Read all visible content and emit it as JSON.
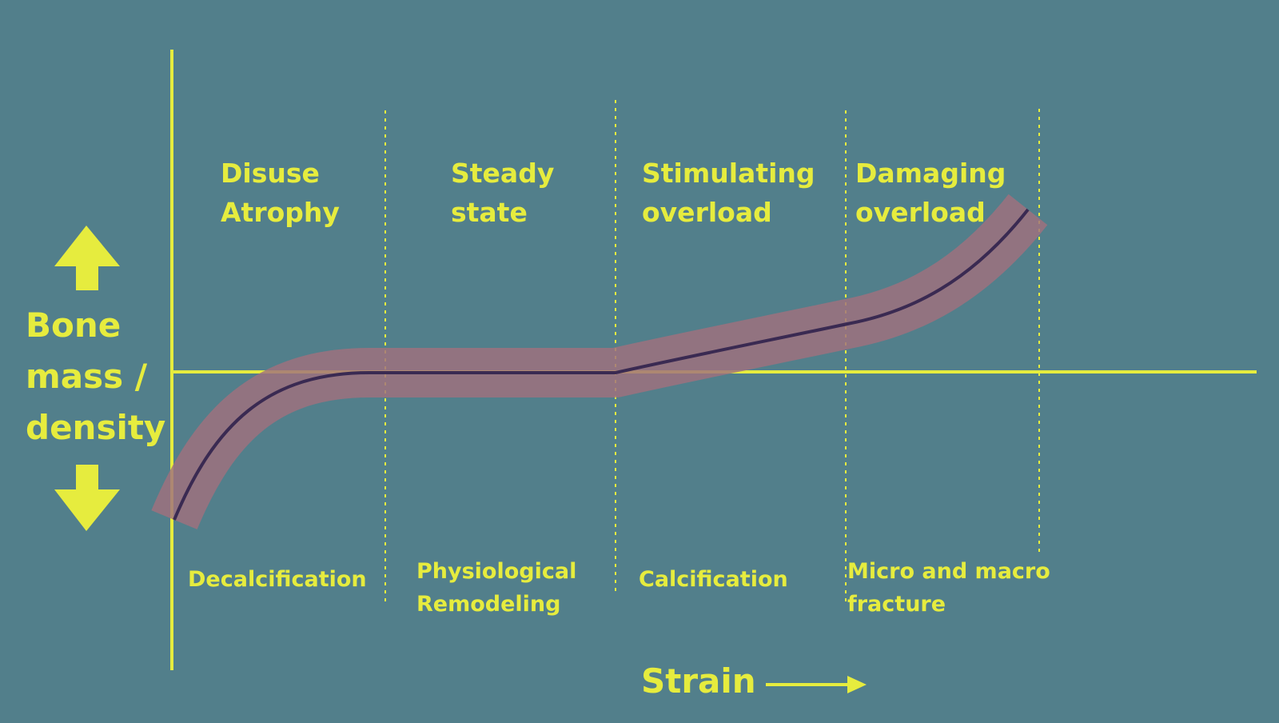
{
  "colors": {
    "background": "#527f8b",
    "accent": "#e6ec3e",
    "curve": "#3a2a52",
    "band": "#a0707e"
  },
  "y_axis": {
    "label_lines": [
      "Bone",
      "mass /",
      "density"
    ],
    "up_icon": "arrow-up-icon",
    "down_icon": "arrow-down-icon"
  },
  "x_axis": {
    "label": "Strain",
    "icon": "arrow-right-icon"
  },
  "zones": [
    {
      "title_lines": [
        "Disuse",
        "Atrophy"
      ],
      "effect_lines": [
        "Decalcification"
      ]
    },
    {
      "title_lines": [
        "Steady",
        "state"
      ],
      "effect_lines": [
        "Physiological",
        "Remodeling"
      ]
    },
    {
      "title_lines": [
        "Stimulating",
        "overload"
      ],
      "effect_lines": [
        "Calcification"
      ]
    },
    {
      "title_lines": [
        "Damaging",
        "overload"
      ],
      "effect_lines": [
        "Micro and macro",
        "fracture"
      ]
    }
  ]
}
